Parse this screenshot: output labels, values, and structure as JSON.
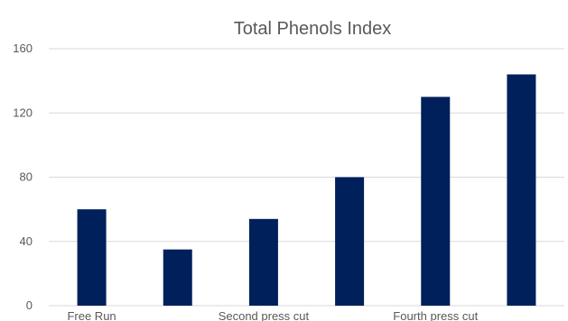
{
  "chart_data": {
    "type": "bar",
    "title": "Total Phenols Index",
    "xlabel": "",
    "ylabel": "",
    "categories": [
      "Free Run",
      "",
      "Second press cut",
      "",
      "Fourth press cut",
      ""
    ],
    "values": [
      60,
      35,
      54,
      80,
      130,
      144
    ],
    "ylim": [
      0,
      160
    ],
    "yticks": [
      0,
      40,
      80,
      120,
      160
    ],
    "grid": true,
    "legend": "none",
    "bar_color": "#00205b",
    "grid_color": "#d9d9d9"
  }
}
